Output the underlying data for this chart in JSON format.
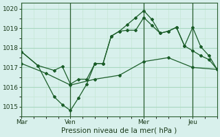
{
  "title": "",
  "xlabel": "Pression niveau de la mer( hPa )",
  "bg_color": "#d8f0ec",
  "grid_major_color": "#a8d8c0",
  "grid_minor_color": "#c8e8d8",
  "line_color": "#1a5c28",
  "xlim": [
    0,
    96
  ],
  "ylim": [
    1014.5,
    1020.3
  ],
  "yticks": [
    1015,
    1016,
    1017,
    1018,
    1019,
    1020
  ],
  "xtick_labels": [
    "Mar",
    "Ven",
    "Mer",
    "Jeu"
  ],
  "xtick_positions": [
    0,
    24,
    60,
    84
  ],
  "vline_positions": [
    0,
    24,
    60,
    84
  ],
  "series1_x": [
    0,
    8,
    16,
    20,
    24,
    28,
    32,
    36,
    40,
    44,
    48,
    52,
    56,
    60,
    64,
    68,
    72,
    76,
    80,
    84,
    88,
    92,
    96
  ],
  "series1_y": [
    1017.8,
    1017.1,
    1016.85,
    1017.05,
    1016.15,
    1016.4,
    1016.4,
    1017.2,
    1017.2,
    1018.6,
    1018.85,
    1018.9,
    1018.9,
    1019.55,
    1019.15,
    1018.75,
    1018.85,
    1019.05,
    1018.1,
    1019.05,
    1018.05,
    1017.6,
    1016.9
  ],
  "series2_x": [
    0,
    8,
    16,
    20,
    24,
    28,
    32,
    36,
    40,
    44,
    48,
    52,
    56,
    60,
    64,
    68,
    72,
    76,
    80,
    84,
    88,
    92,
    96
  ],
  "series2_y": [
    1017.8,
    1017.1,
    1015.5,
    1015.1,
    1014.8,
    1015.45,
    1016.15,
    1017.2,
    1017.2,
    1018.6,
    1018.85,
    1019.2,
    1019.55,
    1019.9,
    1019.45,
    1018.75,
    1018.85,
    1019.05,
    1018.1,
    1017.85,
    1017.6,
    1017.4,
    1016.9
  ],
  "series3_x": [
    0,
    12,
    24,
    36,
    48,
    60,
    72,
    84,
    96
  ],
  "series3_y": [
    1017.2,
    1016.7,
    1016.1,
    1016.4,
    1016.6,
    1017.3,
    1017.5,
    1017.0,
    1016.9
  ]
}
